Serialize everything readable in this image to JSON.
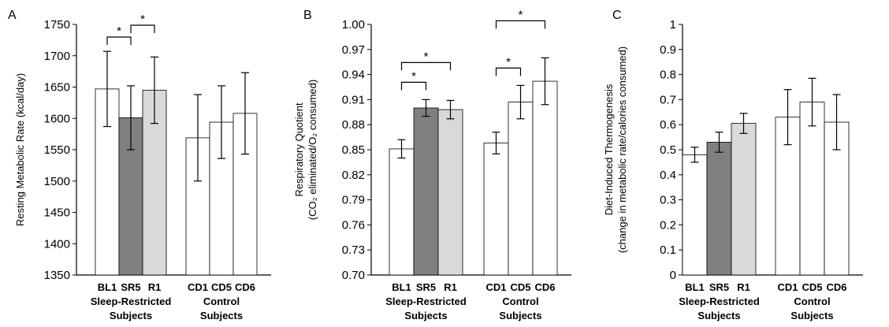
{
  "chart_data": [
    {
      "type": "bar",
      "panel_label": "A",
      "ylabel": "Resting Metabolic Rate (kcal/day)",
      "ylabel_lines": [
        "Resting Metabolic Rate (kcal/day)"
      ],
      "ylim": [
        1350,
        1750
      ],
      "yticks": [
        "1350",
        "1400",
        "1450",
        "1500",
        "1550",
        "1600",
        "1650",
        "1700",
        "1750"
      ],
      "grid": false,
      "groups": [
        {
          "label_lines": [
            "Sleep-Restricted",
            "Subjects"
          ],
          "bars": [
            {
              "label": "BL1",
              "value": 1647,
              "err": 60,
              "color": "#ffffff"
            },
            {
              "label": "SR5",
              "value": 1601,
              "err": 51,
              "color": "#808080"
            },
            {
              "label": "R1",
              "value": 1645,
              "err": 53,
              "color": "#d9d9d9"
            }
          ]
        },
        {
          "label_lines": [
            "Control",
            "Subjects"
          ],
          "bars": [
            {
              "label": "CD1",
              "value": 1569,
              "err": 69,
              "color": "#ffffff"
            },
            {
              "label": "CD5",
              "value": 1594,
              "err": 58,
              "color": "#ffffff"
            },
            {
              "label": "CD6",
              "value": 1608,
              "err": 65,
              "color": "#ffffff"
            }
          ]
        }
      ],
      "significance": [
        {
          "group": 0,
          "from": 0,
          "to": 1,
          "label": "*"
        },
        {
          "group": 0,
          "from": 1,
          "to": 2,
          "label": "*"
        }
      ]
    },
    {
      "type": "bar",
      "panel_label": "B",
      "ylabel": "Respiratory Quotient (CO₂ eliminated/O₂ consumed)",
      "ylabel_lines": [
        "Respiratory Quotient",
        "(CO₂ eliminated/O₂ consumed)"
      ],
      "ylim": [
        0.7,
        1.0
      ],
      "yticks": [
        "0.70",
        "0.73",
        "0.76",
        "0.79",
        "0.82",
        "0.85",
        "0.88",
        "0.91",
        "0.94",
        "0.97",
        "1.00"
      ],
      "grid": false,
      "groups": [
        {
          "label_lines": [
            "Sleep-Restricted",
            "Subjects"
          ],
          "bars": [
            {
              "label": "BL1",
              "value": 0.851,
              "err": 0.011,
              "color": "#ffffff"
            },
            {
              "label": "SR5",
              "value": 0.9,
              "err": 0.01,
              "color": "#808080"
            },
            {
              "label": "R1",
              "value": 0.898,
              "err": 0.011,
              "color": "#d9d9d9"
            }
          ]
        },
        {
          "label_lines": [
            "Control",
            "Subjects"
          ],
          "bars": [
            {
              "label": "CD1",
              "value": 0.858,
              "err": 0.013,
              "color": "#ffffff"
            },
            {
              "label": "CD5",
              "value": 0.907,
              "err": 0.02,
              "color": "#ffffff"
            },
            {
              "label": "CD6",
              "value": 0.932,
              "err": 0.028,
              "color": "#ffffff"
            }
          ]
        }
      ],
      "significance": [
        {
          "group": 0,
          "from": 0,
          "to": 1,
          "label": "*"
        },
        {
          "group": 0,
          "from": 0,
          "to": 2,
          "label": "*"
        },
        {
          "group": 1,
          "from": 0,
          "to": 1,
          "label": "*"
        },
        {
          "group": 1,
          "from": 0,
          "to": 2,
          "label": "*"
        }
      ]
    },
    {
      "type": "bar",
      "panel_label": "C",
      "ylabel": "Diet-Induced Thermogenesis (change in metabolic rate/calories consumed)",
      "ylabel_lines": [
        "Diet-Induced Thermogenesis",
        "(change in metabolic rate/calories consumed)"
      ],
      "ylim": [
        0,
        1
      ],
      "yticks": [
        "0",
        "0.1",
        "0.2",
        "0.3",
        "0.4",
        "0.5",
        "0.6",
        "0.7",
        "0.8",
        "0.9",
        "1"
      ],
      "grid": false,
      "groups": [
        {
          "label_lines": [
            "Sleep-Restricted",
            "Subjects"
          ],
          "bars": [
            {
              "label": "BL1",
              "value": 0.48,
              "err": 0.03,
              "color": "#ffffff"
            },
            {
              "label": "SR5",
              "value": 0.53,
              "err": 0.04,
              "color": "#808080"
            },
            {
              "label": "R1",
              "value": 0.605,
              "err": 0.04,
              "color": "#d9d9d9"
            }
          ]
        },
        {
          "label_lines": [
            "Control",
            "Subjects"
          ],
          "bars": [
            {
              "label": "CD1",
              "value": 0.63,
              "err": 0.11,
              "color": "#ffffff"
            },
            {
              "label": "CD5",
              "value": 0.69,
              "err": 0.095,
              "color": "#ffffff"
            },
            {
              "label": "CD6",
              "value": 0.61,
              "err": 0.11,
              "color": "#ffffff"
            }
          ]
        }
      ],
      "significance": []
    }
  ]
}
